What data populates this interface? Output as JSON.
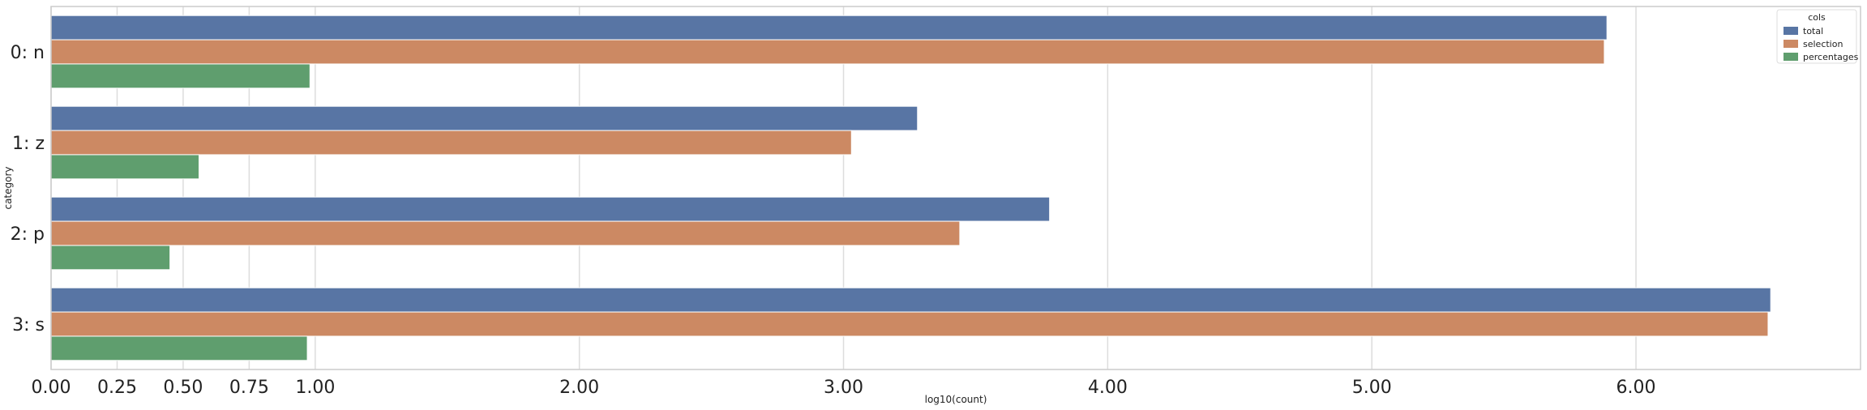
{
  "chart_data": {
    "type": "bar",
    "orientation": "horizontal",
    "categories": [
      "0: n",
      "1: z",
      "2: p",
      "3: s"
    ],
    "series": [
      {
        "name": "total",
        "color": "#5875a4",
        "values": [
          5.89,
          3.28,
          3.78,
          6.51
        ]
      },
      {
        "name": "selection",
        "color": "#cc8963",
        "values": [
          5.88,
          3.03,
          3.44,
          6.5
        ]
      },
      {
        "name": "percentages",
        "color": "#5f9e6e",
        "values": [
          0.98,
          0.56,
          0.45,
          0.97
        ]
      }
    ],
    "xlabel": "log10(count)",
    "ylabel": "category",
    "xlim": [
      0,
      6.85
    ],
    "xticks": [
      0,
      0.25,
      0.5,
      0.75,
      1,
      2,
      3,
      4,
      5,
      6
    ],
    "xtick_labels": [
      "0.00",
      "0.25",
      "0.50",
      "0.75",
      "1.00",
      "2.00",
      "3.00",
      "4.00",
      "5.00",
      "6.00"
    ],
    "grid": true,
    "legend": {
      "title": "cols",
      "placement": "top-right"
    }
  }
}
